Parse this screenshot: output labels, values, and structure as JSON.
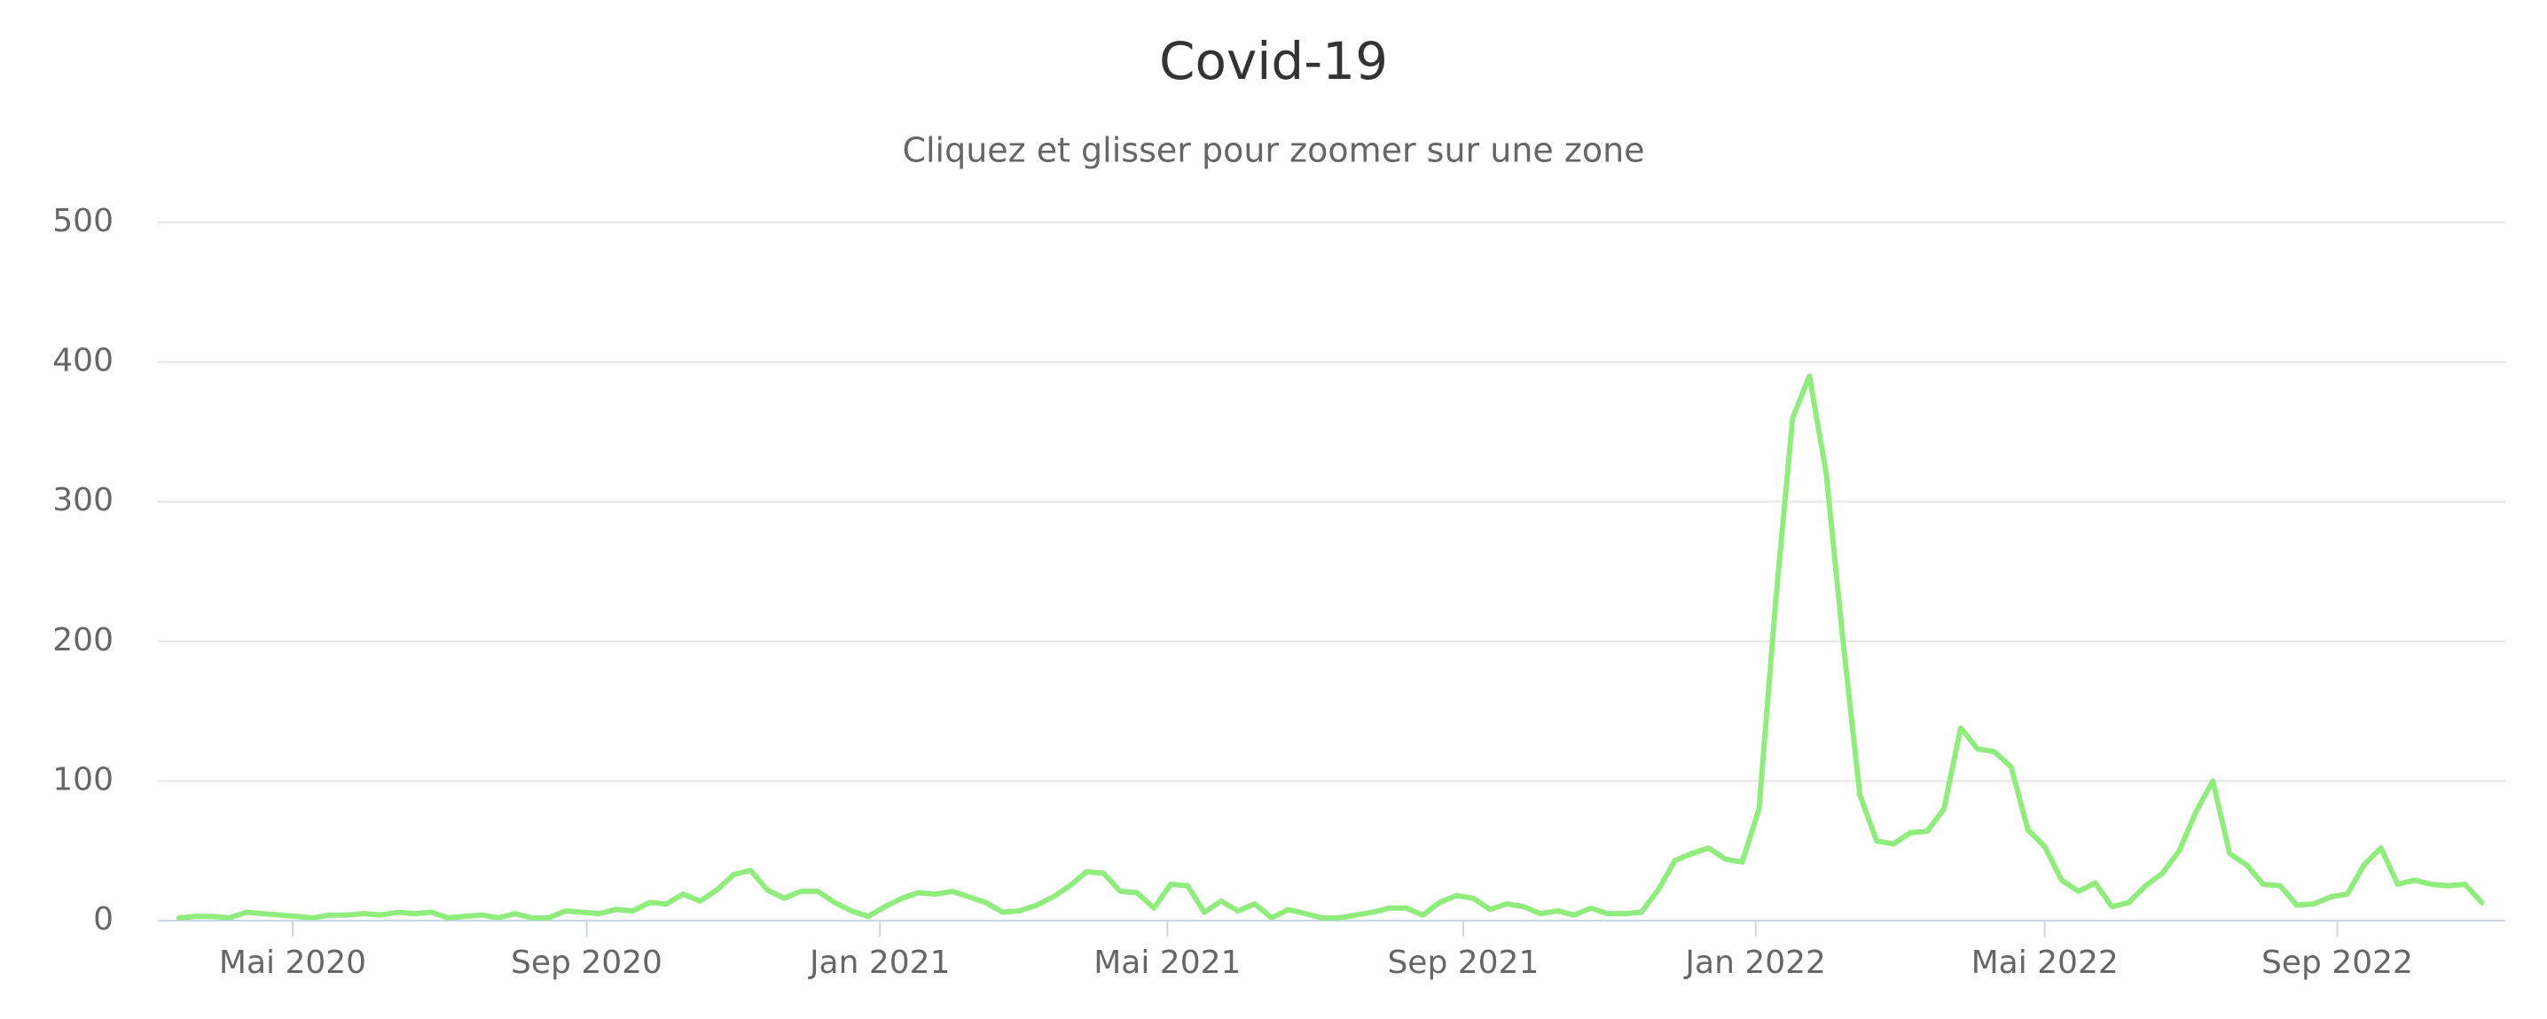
{
  "chart_data": {
    "type": "line",
    "title": "Covid-19",
    "subtitle": "Cliquez et glisser pour zoomer sur une zone",
    "series": [
      {
        "color": "#90ed7d",
        "values": [
          2,
          3,
          3,
          2,
          6,
          5,
          4,
          3,
          2,
          4,
          4,
          5,
          4,
          6,
          5,
          6,
          2,
          3,
          4,
          2,
          5,
          2,
          2,
          7,
          6,
          5,
          8,
          7,
          13,
          12,
          19,
          14,
          22,
          33,
          36,
          22,
          16,
          21,
          21,
          13,
          7,
          3,
          10,
          16,
          20,
          19,
          21,
          17,
          13,
          6,
          7,
          11,
          17,
          25,
          35,
          34,
          21,
          20,
          9,
          26,
          25,
          6,
          14,
          7,
          12,
          2,
          8,
          5,
          2,
          2,
          4,
          6,
          9,
          9,
          4,
          13,
          18,
          16,
          8,
          12,
          10,
          5,
          7,
          4,
          9,
          5,
          5,
          6,
          22,
          43,
          48,
          52,
          44,
          42,
          80,
          230,
          360,
          390,
          320,
          200,
          90,
          57,
          55,
          63,
          64,
          80,
          138,
          123,
          121,
          110,
          65,
          53,
          29,
          21,
          27,
          10,
          13,
          25,
          34,
          50,
          78,
          100,
          48,
          40,
          26,
          25,
          11,
          12,
          17,
          19,
          40,
          52,
          26,
          29,
          26,
          25,
          26,
          13
        ]
      }
    ],
    "xlim": [
      -1.26,
      138.4
    ],
    "xticks": [
      {
        "value": 6.76,
        "label": "Mai 2020"
      },
      {
        "value": 24.25,
        "label": "Sep 2020"
      },
      {
        "value": 41.7,
        "label": "Jan 2021"
      },
      {
        "value": 58.8,
        "label": "Mai 2021"
      },
      {
        "value": 76.4,
        "label": "Sep 2021"
      },
      {
        "value": 93.8,
        "label": "Jan 2022"
      },
      {
        "value": 111.0,
        "label": "Mai 2022"
      },
      {
        "value": 128.4,
        "label": "Sep 2022"
      }
    ],
    "ylim": [
      0,
      500
    ],
    "yticks": [
      0,
      100,
      200,
      300,
      400,
      500
    ],
    "grid": true
  }
}
